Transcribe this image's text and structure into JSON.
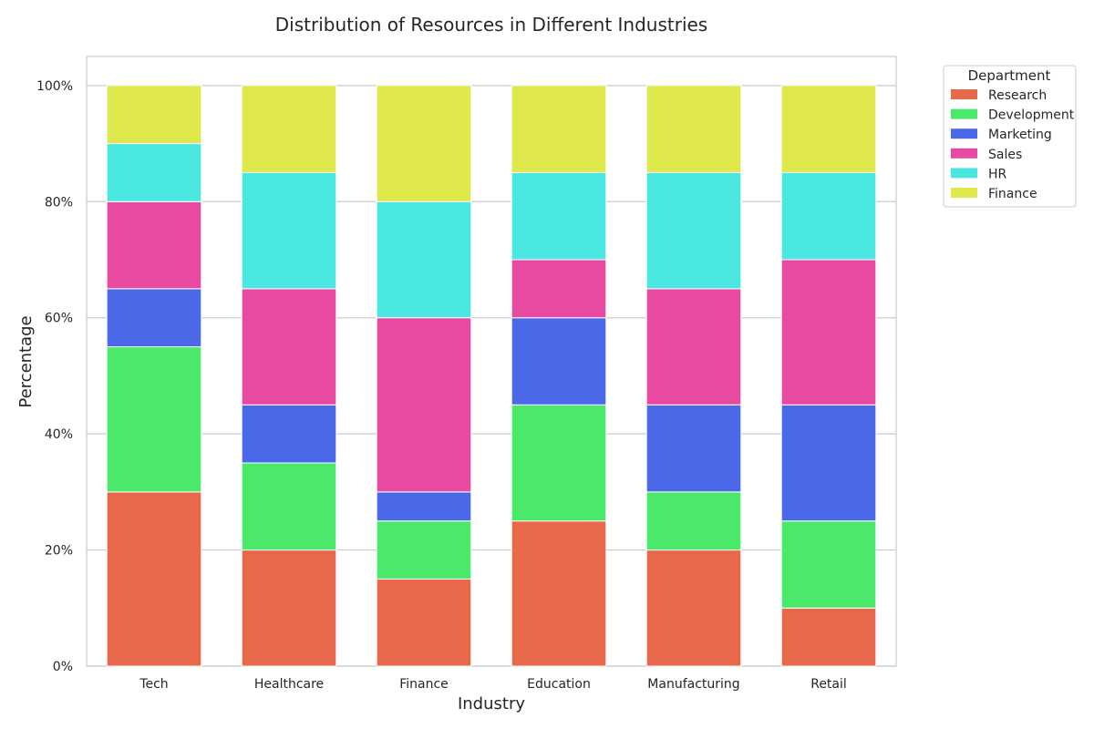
{
  "chart_data": {
    "type": "bar",
    "stacked": true,
    "title": "Distribution of Resources in Different Industries",
    "xlabel": "Industry",
    "ylabel": "Percentage",
    "ylim": [
      0,
      105
    ],
    "yticks": [
      0,
      20,
      40,
      60,
      80,
      100
    ],
    "ytick_labels": [
      "0%",
      "20%",
      "40%",
      "60%",
      "80%",
      "100%"
    ],
    "grid": "horizontal",
    "legend": {
      "title": "Department",
      "placement": "outside-top-right"
    },
    "categories": [
      "Tech",
      "Healthcare",
      "Finance",
      "Education",
      "Manufacturing",
      "Retail"
    ],
    "series": [
      {
        "name": "Research",
        "color": "#e8684a",
        "values": [
          30,
          20,
          15,
          25,
          20,
          10
        ]
      },
      {
        "name": "Development",
        "color": "#4ae96a",
        "values": [
          25,
          15,
          10,
          20,
          10,
          15
        ]
      },
      {
        "name": "Marketing",
        "color": "#4a68e8",
        "values": [
          10,
          10,
          5,
          15,
          15,
          20
        ]
      },
      {
        "name": "Sales",
        "color": "#e84aa1",
        "values": [
          15,
          20,
          30,
          10,
          20,
          25
        ]
      },
      {
        "name": "HR",
        "color": "#4ae6e0",
        "values": [
          10,
          20,
          20,
          15,
          20,
          15
        ]
      },
      {
        "name": "Finance",
        "color": "#dfe84a",
        "values": [
          10,
          15,
          20,
          15,
          15,
          15
        ]
      }
    ]
  }
}
